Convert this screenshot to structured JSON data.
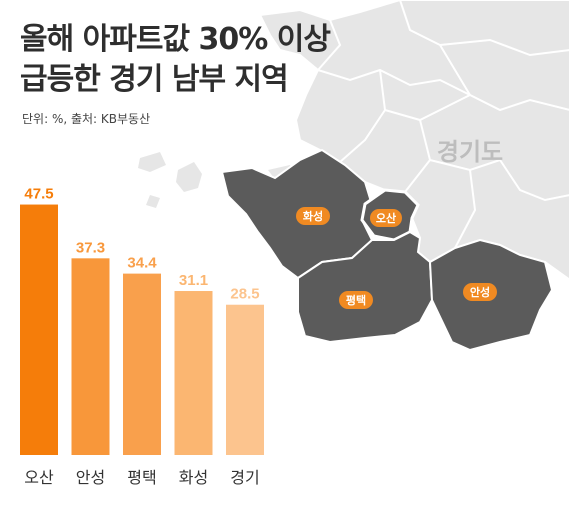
{
  "title_line1": "올해 아파트값 30% 이상",
  "title_line2": "급등한 경기 남부 지역",
  "unit_source": "단위: %, 출처: KB부동산",
  "map": {
    "province_label": "경기도",
    "regions": [
      "화성",
      "오산",
      "평택",
      "안성"
    ]
  },
  "colors": {
    "map_light": "#e6e6e6",
    "map_dark": "#5b5b5b",
    "region_label_bg": "#f08a22",
    "bars": [
      "#f57d0a",
      "#f8973a",
      "#f9a04c",
      "#fbb671",
      "#fcc48e"
    ]
  },
  "chart_data": {
    "type": "bar",
    "categories": [
      "오산",
      "안성",
      "평택",
      "화성",
      "경기"
    ],
    "values": [
      47.5,
      37.3,
      34.4,
      31.1,
      28.5
    ],
    "value_labels": [
      "47.5",
      "37.3",
      "34.4",
      "31.1",
      "28.5"
    ],
    "ylim": [
      0,
      55
    ]
  }
}
